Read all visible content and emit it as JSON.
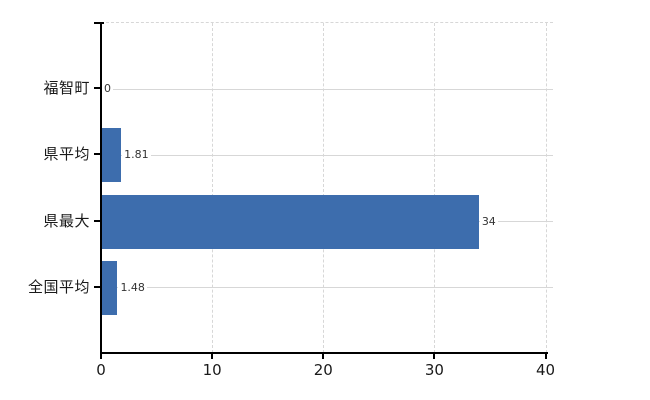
{
  "page": {
    "background": "#ffffff"
  },
  "chart_data": {
    "type": "bar",
    "orientation": "horizontal",
    "title": "",
    "xlabel": "",
    "ylabel": "",
    "categories": [
      "福智町",
      "県平均",
      "県最大",
      "全国平均"
    ],
    "values": [
      0,
      1.81,
      34,
      1.48
    ],
    "value_labels": [
      "0",
      "1.81",
      "34",
      "1.48"
    ],
    "xlim": [
      0,
      40
    ],
    "xticks": [
      0,
      10,
      20,
      30,
      40
    ],
    "xtick_labels": [
      "0",
      "10",
      "20",
      "30",
      "40"
    ],
    "grid": true,
    "legend": "none",
    "colors": {
      "bar": "#3d6dad",
      "gridline": "#d7d7d7",
      "axis": "#000000",
      "category_text": "#1a1a1a",
      "tick_text": "#1a1a1a",
      "value_text": "#333333"
    }
  }
}
